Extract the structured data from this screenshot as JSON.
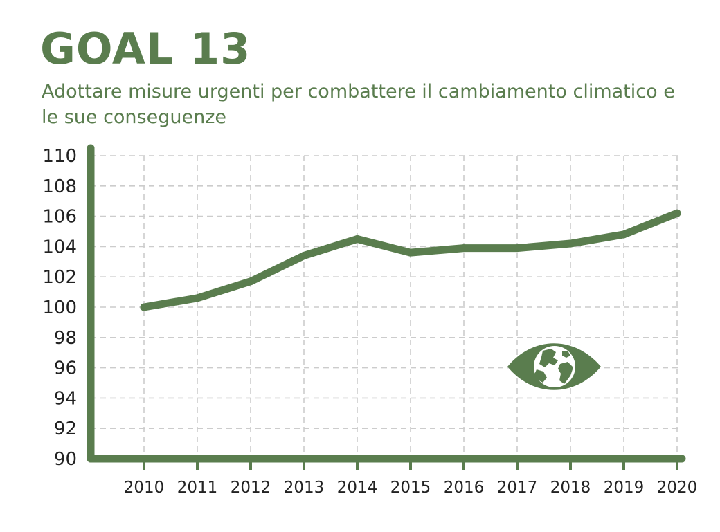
{
  "header": {
    "title": "GOAL 13",
    "subtitle": "Adottare misure urgenti per combattere il cambiamento climatico e le sue conseguenze"
  },
  "colors": {
    "accent": "#5a7d4e",
    "grid": "#cccccc",
    "tick_text": "#222222"
  },
  "icon": {
    "name": "globe-eye-icon"
  },
  "chart_data": {
    "type": "line",
    "title": "GOAL 13",
    "subtitle": "Adottare misure urgenti per combattere il cambiamento climatico e le sue conseguenze",
    "xlabel": "",
    "ylabel": "",
    "categories": [
      "2010",
      "2011",
      "2012",
      "2013",
      "2014",
      "2015",
      "2016",
      "2017",
      "2018",
      "2019",
      "2020"
    ],
    "series": [
      {
        "values": [
          100.0,
          100.6,
          101.7,
          103.4,
          104.5,
          103.6,
          103.9,
          103.9,
          104.2,
          104.8,
          106.2
        ]
      }
    ],
    "ylim": [
      90,
      110
    ],
    "yticks": [
      "110",
      "108",
      "106",
      "104",
      "102",
      "100",
      "98",
      "96",
      "94",
      "92",
      "90"
    ],
    "grid": true,
    "grid_style": "dashed",
    "legend": "none"
  }
}
